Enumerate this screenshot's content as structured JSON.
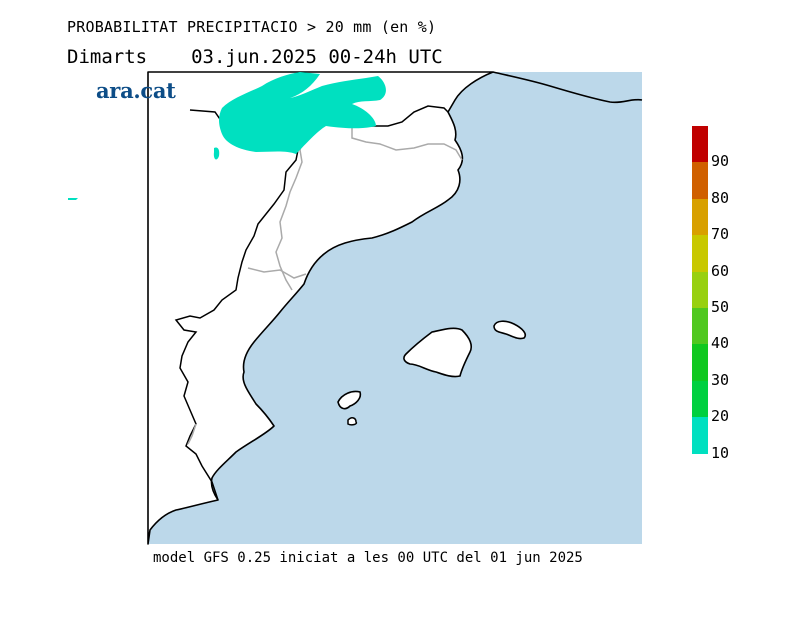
{
  "title": "PROBABILITAT PRECIPITACIO > 20 mm (en %)",
  "day": "Dimarts",
  "date_range": "03.jun.2025 00-24h UTC",
  "brand": "ara.cat",
  "footer": "model GFS 0.25 iniciat a les 00 UTC del 01 jun 2025",
  "colors": {
    "sea": "#bcd8ea",
    "land": "#ffffff",
    "coast": "#000000",
    "border": "#aaaaaa",
    "probability_area": "#00e0c0"
  },
  "legend": {
    "bins": [
      {
        "from": 10,
        "to": 20,
        "color": "#00e0c0"
      },
      {
        "from": 20,
        "to": 30,
        "color": "#00d040"
      },
      {
        "from": 30,
        "to": 40,
        "color": "#10c820"
      },
      {
        "from": 40,
        "to": 50,
        "color": "#50c820"
      },
      {
        "from": 50,
        "to": 60,
        "color": "#98d010"
      },
      {
        "from": 60,
        "to": 70,
        "color": "#c8c800"
      },
      {
        "from": 70,
        "to": 80,
        "color": "#d8a000"
      },
      {
        "from": 80,
        "to": 90,
        "color": "#d06000"
      },
      {
        "from": 90,
        "to": 100,
        "color": "#c00000"
      }
    ],
    "labels": [
      "10",
      "20",
      "30",
      "40",
      "50",
      "60",
      "70",
      "80",
      "90"
    ]
  },
  "map": {
    "region": "Catalunya, País Valencià i Illes Balears",
    "islands": [
      "Mallorca",
      "Menorca",
      "Eivissa"
    ],
    "precipitation_probability_max_band": "10-20"
  }
}
